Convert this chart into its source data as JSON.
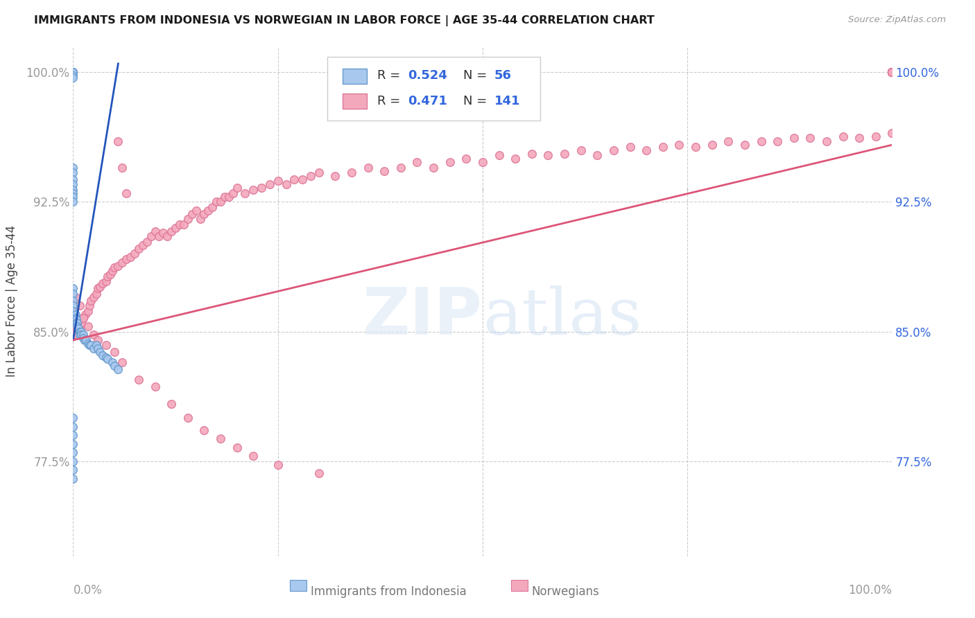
{
  "title": "IMMIGRANTS FROM INDONESIA VS NORWEGIAN IN LABOR FORCE | AGE 35-44 CORRELATION CHART",
  "source": "Source: ZipAtlas.com",
  "ylabel": "In Labor Force | Age 35-44",
  "xlim": [
    0.0,
    1.0
  ],
  "ylim": [
    0.72,
    1.015
  ],
  "y_ticks": [
    0.775,
    0.85,
    0.925,
    1.0
  ],
  "blue_color": "#a8c8ee",
  "pink_color": "#f4a8bc",
  "blue_edge_color": "#6699cc",
  "pink_edge_color": "#dd7799",
  "blue_line_color": "#2255bb",
  "pink_line_color": "#dd5577",
  "legend_text_color": "#3366dd",
  "watermark_color": "#dce8f8",
  "blue_line_x": [
    0.0,
    0.055
  ],
  "blue_line_y": [
    0.845,
    1.005
  ],
  "pink_line_x": [
    0.0,
    1.0
  ],
  "pink_line_y": [
    0.845,
    0.958
  ],
  "marker_size": 70,
  "marker_linewidth": 1.0,
  "blue_x": [
    0.0,
    0.0,
    0.0,
    0.0,
    0.0,
    0.0,
    0.0,
    0.0,
    0.0,
    0.0,
    0.0,
    0.0,
    0.0,
    0.0,
    0.0,
    0.0,
    0.0,
    0.0,
    0.0,
    0.0,
    0.003,
    0.003,
    0.004,
    0.004,
    0.005,
    0.005,
    0.006,
    0.008,
    0.008,
    0.01,
    0.01,
    0.012,
    0.012,
    0.014,
    0.016,
    0.018,
    0.02,
    0.022,
    0.025,
    0.028,
    0.03,
    0.033,
    0.036,
    0.04,
    0.042,
    0.048,
    0.05,
    0.055,
    0.0,
    0.0,
    0.0,
    0.0,
    0.0,
    0.0,
    0.0,
    0.0
  ],
  "blue_y": [
    1.0,
    1.0,
    1.0,
    1.0,
    1.0,
    0.998,
    0.997,
    0.945,
    0.942,
    0.938,
    0.935,
    0.932,
    0.93,
    0.928,
    0.925,
    0.875,
    0.872,
    0.868,
    0.865,
    0.862,
    0.86,
    0.858,
    0.857,
    0.855,
    0.855,
    0.853,
    0.852,
    0.85,
    0.848,
    0.85,
    0.848,
    0.848,
    0.846,
    0.845,
    0.845,
    0.843,
    0.842,
    0.842,
    0.84,
    0.842,
    0.84,
    0.838,
    0.836,
    0.835,
    0.834,
    0.832,
    0.83,
    0.828,
    0.8,
    0.795,
    0.79,
    0.785,
    0.78,
    0.775,
    0.77,
    0.765
  ],
  "pink_x": [
    0.0,
    0.0,
    0.005,
    0.008,
    0.01,
    0.012,
    0.015,
    0.018,
    0.02,
    0.022,
    0.025,
    0.028,
    0.03,
    0.033,
    0.036,
    0.04,
    0.042,
    0.045,
    0.048,
    0.05,
    0.055,
    0.06,
    0.065,
    0.07,
    0.075,
    0.08,
    0.085,
    0.09,
    0.095,
    0.1,
    0.105,
    0.11,
    0.115,
    0.12,
    0.125,
    0.13,
    0.135,
    0.14,
    0.145,
    0.15,
    0.155,
    0.16,
    0.165,
    0.17,
    0.175,
    0.18,
    0.185,
    0.19,
    0.195,
    0.2,
    0.21,
    0.22,
    0.23,
    0.24,
    0.25,
    0.26,
    0.27,
    0.28,
    0.29,
    0.3,
    0.32,
    0.34,
    0.36,
    0.38,
    0.4,
    0.42,
    0.44,
    0.46,
    0.48,
    0.5,
    0.52,
    0.54,
    0.56,
    0.58,
    0.6,
    0.62,
    0.64,
    0.66,
    0.68,
    0.7,
    0.72,
    0.74,
    0.76,
    0.78,
    0.8,
    0.82,
    0.84,
    0.86,
    0.88,
    0.9,
    0.92,
    0.94,
    0.96,
    0.98,
    1.0,
    1.0,
    1.0,
    1.0,
    1.0,
    1.0,
    1.0,
    1.0,
    1.0,
    1.0,
    1.0,
    1.0,
    1.0,
    1.0,
    1.0,
    1.0,
    1.0,
    1.0,
    1.0,
    1.0,
    1.0,
    1.0,
    1.0,
    1.0,
    1.0,
    1.0,
    0.055,
    0.06,
    0.065,
    0.003,
    0.008,
    0.012,
    0.018,
    0.025,
    0.03,
    0.04,
    0.05,
    0.06,
    0.08,
    0.1,
    0.12,
    0.14,
    0.16,
    0.18,
    0.2,
    0.22,
    0.25,
    0.3
  ],
  "pink_y": [
    0.85,
    0.848,
    0.852,
    0.853,
    0.855,
    0.858,
    0.86,
    0.862,
    0.865,
    0.868,
    0.87,
    0.872,
    0.875,
    0.876,
    0.878,
    0.879,
    0.882,
    0.883,
    0.885,
    0.887,
    0.888,
    0.89,
    0.892,
    0.893,
    0.895,
    0.898,
    0.9,
    0.902,
    0.905,
    0.908,
    0.905,
    0.907,
    0.905,
    0.908,
    0.91,
    0.912,
    0.912,
    0.915,
    0.918,
    0.92,
    0.915,
    0.918,
    0.92,
    0.922,
    0.925,
    0.925,
    0.928,
    0.928,
    0.93,
    0.933,
    0.93,
    0.932,
    0.933,
    0.935,
    0.937,
    0.935,
    0.938,
    0.938,
    0.94,
    0.942,
    0.94,
    0.942,
    0.945,
    0.943,
    0.945,
    0.948,
    0.945,
    0.948,
    0.95,
    0.948,
    0.952,
    0.95,
    0.953,
    0.952,
    0.953,
    0.955,
    0.952,
    0.955,
    0.957,
    0.955,
    0.957,
    0.958,
    0.957,
    0.958,
    0.96,
    0.958,
    0.96,
    0.96,
    0.962,
    0.962,
    0.96,
    0.963,
    0.962,
    0.963,
    0.965,
    1.0,
    1.0,
    1.0,
    1.0,
    1.0,
    1.0,
    1.0,
    1.0,
    1.0,
    1.0,
    1.0,
    1.0,
    1.0,
    1.0,
    1.0,
    1.0,
    1.0,
    1.0,
    1.0,
    1.0,
    1.0,
    1.0,
    1.0,
    1.0,
    1.0,
    0.96,
    0.945,
    0.93,
    0.87,
    0.865,
    0.858,
    0.853,
    0.848,
    0.845,
    0.842,
    0.838,
    0.832,
    0.822,
    0.818,
    0.808,
    0.8,
    0.793,
    0.788,
    0.783,
    0.778,
    0.773,
    0.768
  ]
}
